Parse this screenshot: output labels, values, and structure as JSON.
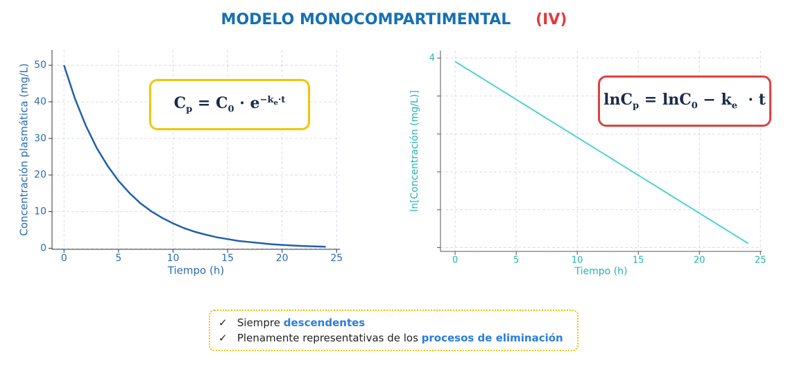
{
  "header": {
    "title": "MODELO MONOCOMPARTIMENTAL",
    "tag": "(IV)"
  },
  "chart_data": [
    {
      "type": "line",
      "xlabel": "Tiempo (h)",
      "ylabel": "Concentración plasmática (mg/L)",
      "x": [
        0,
        1,
        2,
        3,
        4,
        5,
        6,
        7,
        8,
        9,
        10,
        11,
        12,
        13,
        14,
        15,
        16,
        17,
        18,
        19,
        20,
        21,
        22,
        23,
        24
      ],
      "series": [
        {
          "color": "#1f5fae",
          "values": [
            50,
            40.9,
            33.5,
            27.4,
            22.5,
            18.4,
            15.1,
            12.3,
            10.1,
            8.3,
            6.8,
            5.5,
            4.5,
            3.7,
            3.0,
            2.5,
            2.0,
            1.7,
            1.4,
            1.1,
            0.9,
            0.75,
            0.6,
            0.5,
            0.4
          ]
        }
      ],
      "xlim": [
        -1.1,
        25.3
      ],
      "ylim": [
        -0.3,
        54.2
      ],
      "xticks": [
        0,
        5,
        10,
        15,
        20,
        25
      ],
      "yticks": [
        0,
        10,
        20,
        30,
        40,
        50
      ],
      "grid": true
    },
    {
      "type": "line",
      "xlabel": "Tiempo (h)",
      "ylabel": "ln[Concentración (mg/L)]",
      "x": [
        0,
        1,
        2,
        3,
        4,
        5,
        6,
        7,
        8,
        9,
        10,
        11,
        12,
        13,
        14,
        15,
        16,
        17,
        18,
        19,
        20,
        21,
        22,
        23,
        24
      ],
      "series": [
        {
          "color": "#4dd2d2",
          "values": [
            3.91,
            3.71,
            3.51,
            3.31,
            3.11,
            2.91,
            2.71,
            2.51,
            2.31,
            2.11,
            1.91,
            1.71,
            1.51,
            1.31,
            1.11,
            0.91,
            0.71,
            0.51,
            0.31,
            0.11,
            -0.09,
            -0.29,
            -0.49,
            -0.69,
            -0.89
          ]
        }
      ],
      "xlim": [
        -1.2,
        25.1
      ],
      "ylim": [
        -1.1,
        4.2
      ],
      "xticks": [
        0,
        5,
        10,
        15,
        20,
        25
      ],
      "yticks": [
        4,
        {
          "value": 3,
          "label": null
        },
        {
          "value": 2,
          "label": null
        },
        {
          "value": 1,
          "label": null
        },
        {
          "value": 0,
          "label": null
        },
        {
          "value": -1,
          "label": null
        }
      ],
      "grid": true
    }
  ],
  "formulas": [
    {
      "parts": [
        "C",
        "p",
        " = C",
        "0",
        " · e",
        "−k",
        "e",
        "·t"
      ]
    },
    {
      "parts": [
        "lnC",
        "p",
        " = lnC",
        "0",
        " − k",
        "e",
        "  · t"
      ]
    }
  ],
  "bullets": [
    {
      "text": "Siempre ",
      "highlight": "descendentes"
    },
    {
      "text": "Plenamente representativas de los ",
      "highlight": "procesos de eliminación"
    }
  ]
}
